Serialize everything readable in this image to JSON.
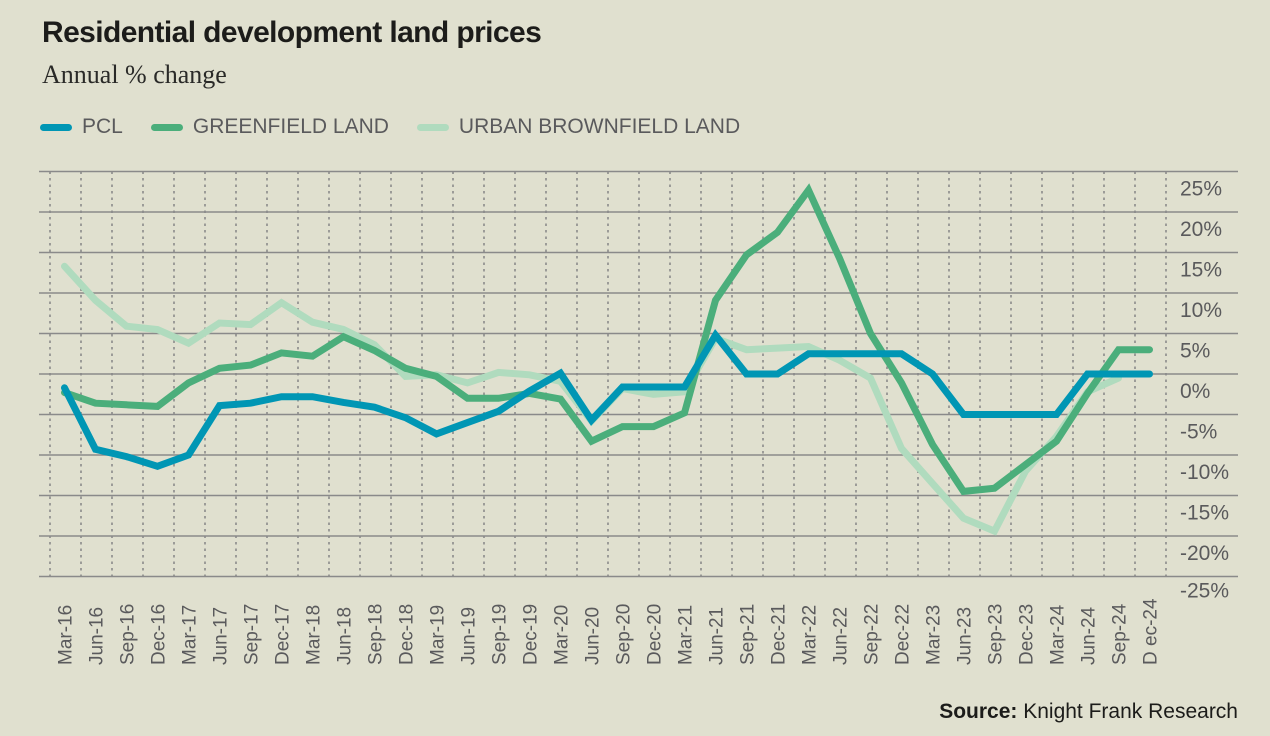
{
  "title": "Residential development land prices",
  "subtitle": "Annual % change",
  "source_label": "Source:",
  "source_text": "Knight Frank Research",
  "colors": {
    "background": "#e0e0cf",
    "pcl": "#0096b4",
    "greenfield": "#4bae7b",
    "urban_brownfield": "#b0dbbe",
    "grid": "#8a8a8a",
    "text": "#5a5a5c"
  },
  "legend": [
    {
      "label": "PCL",
      "color": "#0096b4"
    },
    {
      "label": "GREENFIELD LAND",
      "color": "#4bae7b"
    },
    {
      "label": "URBAN BROWNFIELD LAND",
      "color": "#b0dbbe"
    }
  ],
  "chart_data": {
    "type": "line",
    "title": "Residential development land prices",
    "subtitle": "Annual % change",
    "xlabel": "",
    "ylabel": "",
    "ylim": [
      -25,
      25
    ],
    "yticks": [
      25,
      20,
      15,
      10,
      5,
      0,
      -5,
      -10,
      -15,
      -20,
      -25
    ],
    "ytick_labels": [
      "25%",
      "20%",
      "15%",
      "10%",
      "5%",
      "0%",
      "-5%",
      "-10%",
      "-15%",
      "-20%",
      "-25%"
    ],
    "y_axis_position": "right",
    "grid": true,
    "legend_position": "top-left",
    "categories": [
      "Mar-16",
      "Jun-16",
      "Sep-16",
      "Dec-16",
      "Mar-17",
      "Jun-17",
      "Sep-17",
      "Dec-17",
      "Mar-18",
      "Jun-18",
      "Sep-18",
      "Dec-18",
      "Mar-19",
      "Jun-19",
      "Sep-19",
      "Dec-19",
      "Mar-20",
      "Jun-20",
      "Sep-20",
      "Dec-20",
      "Mar-21",
      "Jun-21",
      "Sep-21",
      "Dec-21",
      "Mar-22",
      "Jun-22",
      "Sep-22",
      "Dec-22",
      "Mar-23",
      "Jun-23",
      "Sep-23",
      "Dec-23",
      "Mar-24",
      "Jun-24",
      "Sep-24",
      "D ec-24"
    ],
    "series": [
      {
        "name": "URBAN BROWNFIELD LAND",
        "color": "#b0dbbe",
        "values": [
          13.3,
          9.1,
          5.9,
          5.5,
          3.8,
          6.3,
          6.1,
          8.8,
          6.4,
          5.5,
          3.6,
          -0.3,
          -0.1,
          -1.1,
          0.2,
          -0.1,
          -0.9,
          -5.8,
          -1.8,
          -2.5,
          -2.2,
          4.4,
          3.0,
          3.2,
          3.4,
          1.7,
          -0.5,
          -9.2,
          -13.5,
          -17.8,
          -19.4,
          -12.0,
          -7.7,
          -2.2,
          -0.5,
          null
        ]
      },
      {
        "name": "GREENFIELD LAND",
        "color": "#4bae7b",
        "values": [
          -2.3,
          -3.6,
          -3.8,
          -4.0,
          -1.1,
          0.7,
          1.1,
          2.6,
          2.2,
          4.6,
          2.9,
          0.7,
          -0.3,
          -3.0,
          -3.0,
          -2.4,
          -3.1,
          -8.3,
          -6.5,
          -6.5,
          -4.8,
          9.1,
          14.7,
          17.5,
          22.7,
          14.3,
          5.0,
          -1.1,
          -8.7,
          -14.5,
          -14.1,
          -11.2,
          -8.3,
          -2.4,
          3.0,
          3.0
        ]
      },
      {
        "name": "PCL",
        "color": "#0096b4",
        "values": [
          -1.7,
          -9.3,
          -10.2,
          -11.4,
          -10.0,
          -3.9,
          -3.6,
          -2.8,
          -2.8,
          -3.5,
          -4.1,
          -5.4,
          -7.4,
          -6.0,
          -4.6,
          -2.1,
          0.1,
          -5.7,
          -1.6,
          -1.6,
          -1.6,
          4.8,
          0.0,
          0.0,
          2.5,
          2.5,
          2.5,
          2.5,
          0.0,
          -5.0,
          -5.0,
          -5.0,
          -5.0,
          0.0,
          0.0,
          0.0
        ]
      }
    ]
  }
}
